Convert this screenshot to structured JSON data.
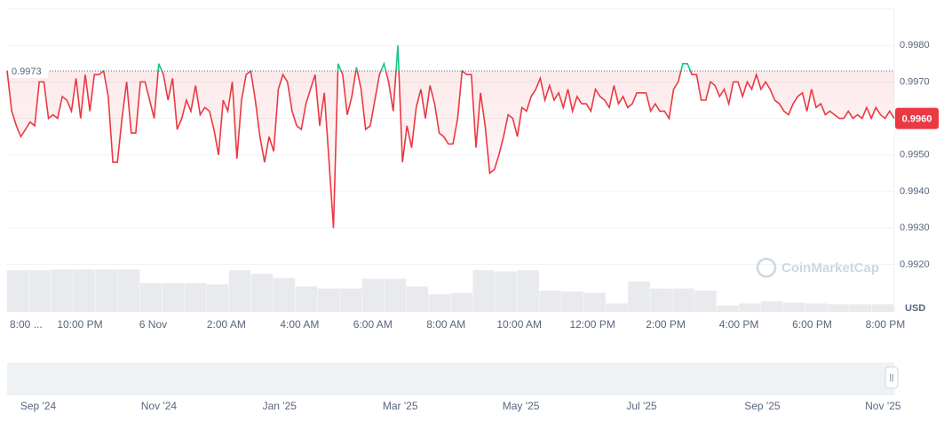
{
  "chart_data": {
    "type": "line",
    "series": [
      {
        "name": "Price",
        "color": "#ea3943",
        "color_above": "#16c784",
        "values": [
          0.9973,
          0.9962,
          0.9958,
          0.9955,
          0.9957,
          0.9959,
          0.9958,
          0.997,
          0.997,
          0.996,
          0.9961,
          0.996,
          0.9966,
          0.9965,
          0.9962,
          0.9971,
          0.996,
          0.9972,
          0.9962,
          0.9972,
          0.9972,
          0.9973,
          0.9966,
          0.9948,
          0.9948,
          0.996,
          0.997,
          0.9956,
          0.9956,
          0.997,
          0.997,
          0.9965,
          0.996,
          0.9975,
          0.9972,
          0.9965,
          0.9971,
          0.9957,
          0.996,
          0.9965,
          0.9962,
          0.9969,
          0.9961,
          0.9963,
          0.9962,
          0.9957,
          0.995,
          0.9965,
          0.9962,
          0.997,
          0.9949,
          0.9965,
          0.9972,
          0.9973,
          0.9965,
          0.9955,
          0.9948,
          0.9955,
          0.9951,
          0.9968,
          0.9972,
          0.997,
          0.9962,
          0.9958,
          0.9957,
          0.9964,
          0.9968,
          0.9972,
          0.9958,
          0.9967,
          0.9949,
          0.993,
          0.9975,
          0.9972,
          0.9961,
          0.9966,
          0.9974,
          0.9968,
          0.9957,
          0.9958,
          0.9965,
          0.9972,
          0.9975,
          0.997,
          0.9962,
          0.998,
          0.9948,
          0.9958,
          0.9952,
          0.9963,
          0.9968,
          0.996,
          0.9969,
          0.9964,
          0.9956,
          0.9955,
          0.9953,
          0.9953,
          0.996,
          0.9973,
          0.9972,
          0.9972,
          0.9952,
          0.9967,
          0.9958,
          0.9945,
          0.9946,
          0.995,
          0.9955,
          0.9961,
          0.996,
          0.9955,
          0.9963,
          0.9962,
          0.9966,
          0.9968,
          0.9971,
          0.9965,
          0.9969,
          0.9965,
          0.9967,
          0.9963,
          0.9968,
          0.9962,
          0.9966,
          0.9964,
          0.9964,
          0.9962,
          0.9968,
          0.9966,
          0.9965,
          0.9963,
          0.9969,
          0.9964,
          0.9966,
          0.9963,
          0.9964,
          0.9967,
          0.9967,
          0.9967,
          0.9962,
          0.9964,
          0.9962,
          0.9962,
          0.996,
          0.9968,
          0.997,
          0.9975,
          0.9975,
          0.9972,
          0.9972,
          0.9965,
          0.9965,
          0.997,
          0.9969,
          0.9966,
          0.9968,
          0.9964,
          0.997,
          0.997,
          0.9966,
          0.997,
          0.9968,
          0.9972,
          0.9968,
          0.997,
          0.9968,
          0.9965,
          0.9964,
          0.9962,
          0.9961,
          0.9964,
          0.9966,
          0.9967,
          0.9962,
          0.9968,
          0.9963,
          0.9964,
          0.9961,
          0.9962,
          0.9961,
          0.996,
          0.996,
          0.9962,
          0.996,
          0.9961,
          0.996,
          0.9963,
          0.996,
          0.9963,
          0.9961,
          0.996,
          0.9962,
          0.996
        ]
      }
    ],
    "baseline": 0.9973,
    "current_price": {
      "value": 0.996,
      "label": "0.9960"
    },
    "ylim": [
      0.9907,
      0.999
    ],
    "yticks": [
      {
        "value": 0.992,
        "label": "0.9920"
      },
      {
        "value": 0.993,
        "label": "0.9930"
      },
      {
        "value": 0.994,
        "label": "0.9940"
      },
      {
        "value": 0.995,
        "label": "0.9950"
      },
      {
        "value": 0.996,
        "label": "0.9960"
      },
      {
        "value": 0.997,
        "label": "0.9970"
      },
      {
        "value": 0.998,
        "label": "0.9980"
      }
    ],
    "grid": true,
    "currency": "USD",
    "watermark": "CoinMarketCap",
    "x_labels": [
      "8:00 ...",
      "10:00 PM",
      "6 Nov",
      "2:00 AM",
      "4:00 AM",
      "6:00 AM",
      "8:00 AM",
      "10:00 AM",
      "12:00 PM",
      "2:00 PM",
      "4:00 PM",
      "6:00 PM",
      "8:00 PM"
    ],
    "volume": {
      "color": "#e8eaed",
      "values": [
        0.98,
        0.98,
        1,
        1,
        1,
        1,
        0.68,
        0.68,
        0.68,
        0.65,
        0.98,
        0.9,
        0.8,
        0.6,
        0.55,
        0.55,
        0.78,
        0.78,
        0.6,
        0.42,
        0.45,
        0.98,
        0.95,
        0.98,
        0.5,
        0.48,
        0.45,
        0.2,
        0.72,
        0.55,
        0.55,
        0.5,
        0.15,
        0.2,
        0.25,
        0.22,
        0.2,
        0.18,
        0.18,
        0.18
      ]
    },
    "navigator_labels": [
      "Sep '24",
      "Nov '24",
      "Jan '25",
      "Mar '25",
      "May '25",
      "Jul '25",
      "Sep '25",
      "Nov '25"
    ]
  }
}
